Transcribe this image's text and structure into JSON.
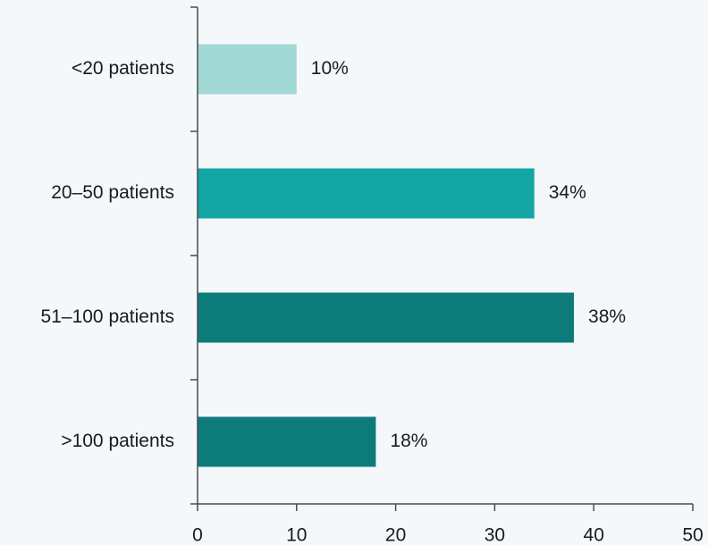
{
  "chart_data": {
    "type": "bar",
    "orientation": "horizontal",
    "title": "",
    "xlabel": "",
    "ylabel": "",
    "categories": [
      "<20 patients",
      "20–50 patients",
      "51–100 patients",
      ">100 patients"
    ],
    "values": [
      10,
      34,
      38,
      18
    ],
    "data_labels": [
      "10%",
      "34%",
      "38%",
      "18%"
    ],
    "bar_colors": [
      "#a2d9d7",
      "#14a5a5",
      "#0e7b7b",
      "#0e7b7b"
    ],
    "xlim": [
      0,
      50
    ],
    "xticks": [
      0,
      10,
      20,
      30,
      40,
      50
    ],
    "xtick_labels": [
      "0",
      "10",
      "20",
      "30",
      "40",
      "50"
    ],
    "grid": false,
    "legend": "none"
  }
}
